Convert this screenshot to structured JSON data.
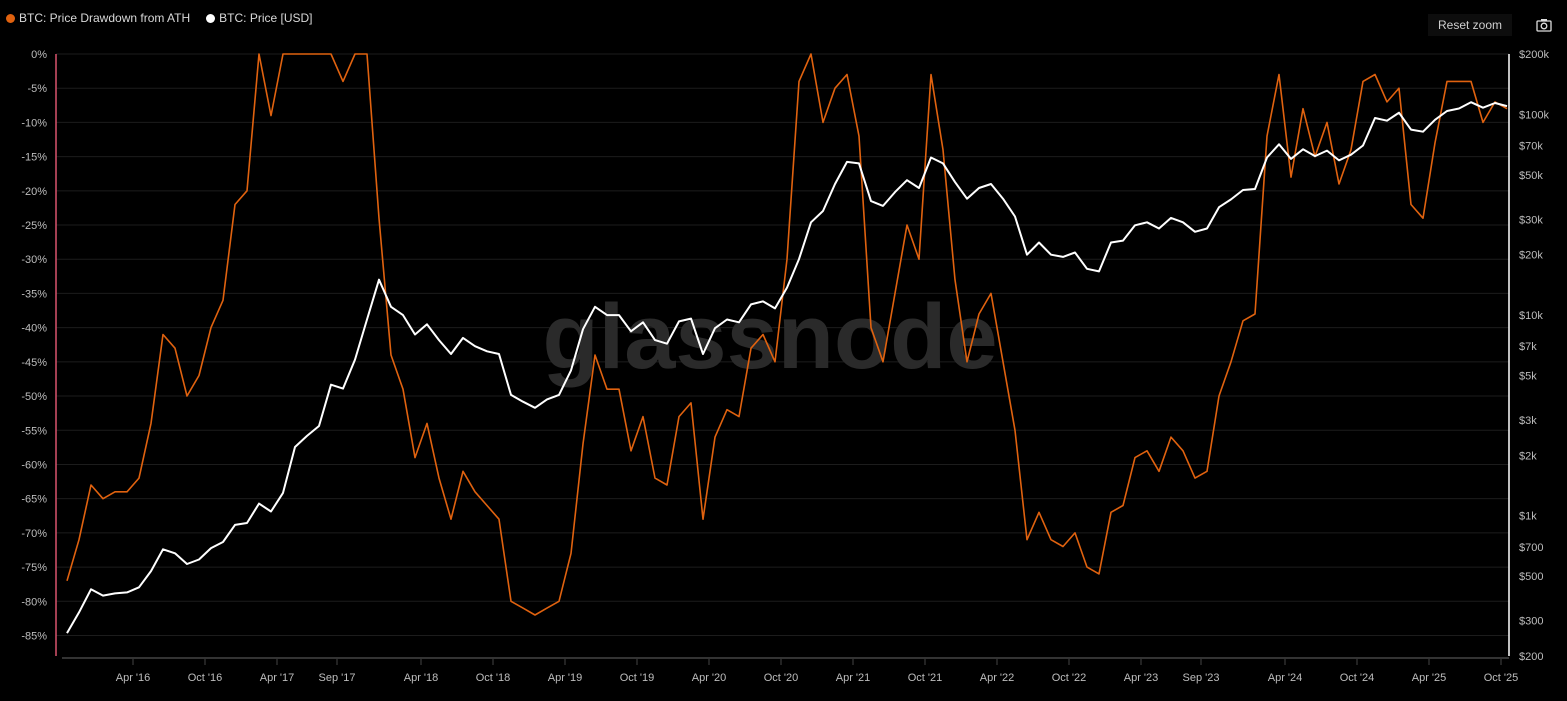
{
  "legend": [
    {
      "label": "BTC: Price Drawdown from ATH",
      "color": "#e0620f"
    },
    {
      "label": "BTC: Price [USD]",
      "color": "#ffffff"
    }
  ],
  "toolbar": {
    "reset_zoom": "Reset zoom",
    "camera_icon": "camera-icon"
  },
  "watermark": "glassnode",
  "chart_data": {
    "type": "line",
    "xaxis": {
      "ticks": [
        {
          "date": "2016-04",
          "label": "Apr '16"
        },
        {
          "date": "2016-10",
          "label": "Oct '16"
        },
        {
          "date": "2017-04",
          "label": "Apr '17"
        },
        {
          "date": "2017-09",
          "label": "Sep '17"
        },
        {
          "date": "2018-04",
          "label": "Apr '18"
        },
        {
          "date": "2018-10",
          "label": "Oct '18"
        },
        {
          "date": "2019-04",
          "label": "Apr '19"
        },
        {
          "date": "2019-10",
          "label": "Oct '19"
        },
        {
          "date": "2020-04",
          "label": "Apr '20"
        },
        {
          "date": "2020-10",
          "label": "Oct '20"
        },
        {
          "date": "2021-04",
          "label": "Apr '21"
        },
        {
          "date": "2021-10",
          "label": "Oct '21"
        },
        {
          "date": "2022-04",
          "label": "Apr '22"
        },
        {
          "date": "2022-10",
          "label": "Oct '22"
        },
        {
          "date": "2023-04",
          "label": "Apr '23"
        },
        {
          "date": "2023-09",
          "label": "Sep '23"
        },
        {
          "date": "2024-04",
          "label": "Apr '24"
        },
        {
          "date": "2024-10",
          "label": "Oct '24"
        },
        {
          "date": "2025-04",
          "label": "Apr '25"
        },
        {
          "date": "2025-10",
          "label": "Oct '25"
        }
      ]
    },
    "yaxis_left": {
      "ylim": [
        -88,
        0
      ],
      "unit": "%",
      "ticks": [
        0,
        -5,
        -10,
        -15,
        -20,
        -25,
        -30,
        -35,
        -40,
        -45,
        -50,
        -55,
        -60,
        -65,
        -70,
        -75,
        -80,
        -85
      ],
      "tick_labels": [
        "0%",
        "-5%",
        "-10%",
        "-15%",
        "-20%",
        "-25%",
        "-30%",
        "-35%",
        "-40%",
        "-45%",
        "-50%",
        "-55%",
        "-60%",
        "-65%",
        "-70%",
        "-75%",
        "-80%",
        "-85%"
      ]
    },
    "yaxis_right": {
      "scale": "log",
      "ylim": [
        200,
        200000
      ],
      "ticks": [
        200000,
        100000,
        70000,
        50000,
        30000,
        20000,
        10000,
        7000,
        5000,
        3000,
        2000,
        1000,
        700,
        500,
        300,
        200
      ],
      "tick_labels": [
        "$200k",
        "$100k",
        "$70k",
        "$50k",
        "$30k",
        "$20k",
        "$10k",
        "$7k",
        "$5k",
        "$3k",
        "$2k",
        "$1k",
        "$700",
        "$500",
        "$300",
        "$200"
      ]
    },
    "grid": true,
    "legend_position": "top-left",
    "start": "2015-10",
    "series": [
      {
        "name": "BTC: Price Drawdown from ATH",
        "axis": "left",
        "color": "#e0620f",
        "values": [
          -77,
          -71,
          -63,
          -65,
          -64,
          -64,
          -62,
          -54,
          -41,
          -43,
          -50,
          -47,
          -40,
          -36,
          -22,
          -20,
          0,
          -9,
          0,
          0,
          0,
          0,
          0,
          -4,
          0,
          0,
          -24,
          -44,
          -49,
          -59,
          -54,
          -62,
          -68,
          -61,
          -64,
          -66,
          -68,
          -80,
          -81,
          -82,
          -81,
          -80,
          -73,
          -57,
          -44,
          -49,
          -49,
          -58,
          -53,
          -62,
          -63,
          -53,
          -51,
          -68,
          -56,
          -52,
          -53,
          -43,
          -41,
          -45,
          -30,
          -4,
          0,
          -10,
          -5,
          -3,
          -12,
          -40,
          -45,
          -35,
          -25,
          -30,
          -3,
          -14,
          -33,
          -45,
          -38,
          -35,
          -45,
          -55,
          -71,
          -67,
          -71,
          -72,
          -70,
          -75,
          -76,
          -67,
          -66,
          -59,
          -58,
          -61,
          -56,
          -58,
          -62,
          -61,
          -50,
          -45,
          -39,
          -38,
          -12,
          -3,
          -18,
          -8,
          -15,
          -10,
          -19,
          -14,
          -4,
          -3,
          -7,
          -5,
          -22,
          -24,
          -13,
          -4,
          -4,
          -4,
          -10,
          -7,
          -8
        ]
      },
      {
        "name": "BTC: Price [USD]",
        "axis": "right",
        "color": "#ffffff",
        "values": [
          260,
          330,
          430,
          400,
          410,
          415,
          440,
          530,
          680,
          650,
          575,
          605,
          690,
          740,
          900,
          920,
          1150,
          1050,
          1300,
          2200,
          2500,
          2800,
          4500,
          4300,
          6000,
          9500,
          15000,
          11000,
          10000,
          8000,
          9000,
          7500,
          6400,
          7700,
          7000,
          6600,
          6400,
          4000,
          3700,
          3450,
          3800,
          4000,
          5300,
          8500,
          11000,
          10000,
          10000,
          8300,
          9200,
          7500,
          7200,
          9300,
          9600,
          6400,
          8600,
          9500,
          9200,
          11300,
          11700,
          10800,
          13700,
          19000,
          29000,
          33000,
          45000,
          58000,
          57000,
          37000,
          35000,
          41000,
          47000,
          43000,
          61000,
          57000,
          46000,
          38000,
          43000,
          45000,
          38000,
          31000,
          20000,
          23000,
          20000,
          19500,
          20500,
          17000,
          16500,
          23000,
          23500,
          28000,
          29000,
          27000,
          30500,
          29000,
          26000,
          27000,
          34500,
          37700,
          42000,
          42500,
          61000,
          71000,
          60000,
          67000,
          62000,
          66000,
          59000,
          63000,
          70000,
          96000,
          93000,
          102000,
          84000,
          82000,
          94000,
          104000,
          107000,
          115000,
          108000,
          114000,
          110000
        ]
      }
    ]
  }
}
